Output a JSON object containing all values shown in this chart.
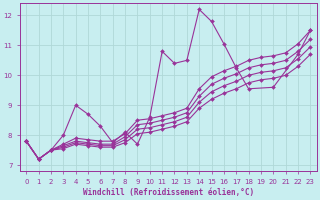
{
  "xlabel": "Windchill (Refroidissement éolien,°C)",
  "bg_color": "#c8eef0",
  "line_color": "#993399",
  "grid_color": "#aadddd",
  "xlim": [
    -0.5,
    23.5
  ],
  "ylim": [
    6.8,
    12.4
  ],
  "xticks": [
    0,
    1,
    2,
    3,
    4,
    5,
    6,
    7,
    8,
    9,
    10,
    11,
    12,
    13,
    14,
    15,
    16,
    17,
    18,
    19,
    20,
    21,
    22,
    23
  ],
  "yticks": [
    7,
    8,
    9,
    10,
    11,
    12
  ],
  "lines": [
    {
      "x": [
        0,
        1,
        2,
        3,
        4,
        5,
        6,
        7,
        8,
        9,
        10,
        11,
        12,
        13,
        14,
        15,
        16,
        17,
        18,
        20,
        22,
        23
      ],
      "y": [
        7.8,
        7.2,
        7.5,
        8.0,
        9.0,
        8.7,
        8.3,
        7.75,
        8.1,
        7.7,
        8.6,
        10.8,
        10.4,
        10.5,
        12.2,
        11.8,
        11.05,
        10.25,
        9.55,
        9.6,
        10.7,
        11.5
      ]
    },
    {
      "x": [
        0,
        1,
        2,
        3,
        4,
        5,
        6,
        7,
        8,
        9,
        10,
        11,
        12,
        13,
        14,
        15,
        16,
        17,
        18,
        19,
        20,
        21,
        22,
        23
      ],
      "y": [
        7.8,
        7.2,
        7.5,
        7.7,
        7.9,
        7.85,
        7.8,
        7.8,
        8.05,
        8.5,
        8.55,
        8.65,
        8.75,
        8.9,
        9.55,
        9.95,
        10.15,
        10.3,
        10.5,
        10.6,
        10.65,
        10.75,
        11.05,
        11.5
      ]
    },
    {
      "x": [
        0,
        1,
        2,
        3,
        4,
        5,
        6,
        7,
        8,
        9,
        10,
        11,
        12,
        13,
        14,
        15,
        16,
        17,
        18,
        19,
        20,
        21,
        22,
        23
      ],
      "y": [
        7.8,
        7.2,
        7.5,
        7.65,
        7.8,
        7.75,
        7.7,
        7.7,
        7.95,
        8.35,
        8.4,
        8.5,
        8.6,
        8.75,
        9.3,
        9.7,
        9.9,
        10.05,
        10.25,
        10.35,
        10.4,
        10.5,
        10.8,
        11.2
      ]
    },
    {
      "x": [
        0,
        1,
        2,
        3,
        4,
        5,
        6,
        7,
        8,
        9,
        10,
        11,
        12,
        13,
        14,
        15,
        16,
        17,
        18,
        19,
        20,
        21,
        22,
        23
      ],
      "y": [
        7.8,
        7.2,
        7.5,
        7.6,
        7.75,
        7.7,
        7.65,
        7.65,
        7.85,
        8.2,
        8.25,
        8.35,
        8.45,
        8.6,
        9.1,
        9.45,
        9.65,
        9.8,
        10.0,
        10.1,
        10.15,
        10.25,
        10.55,
        10.95
      ]
    },
    {
      "x": [
        0,
        1,
        2,
        3,
        4,
        5,
        6,
        7,
        8,
        9,
        10,
        11,
        12,
        13,
        14,
        15,
        16,
        17,
        18,
        19,
        20,
        21,
        22,
        23
      ],
      "y": [
        7.8,
        7.2,
        7.5,
        7.55,
        7.7,
        7.65,
        7.6,
        7.6,
        7.75,
        8.05,
        8.1,
        8.2,
        8.3,
        8.45,
        8.9,
        9.2,
        9.4,
        9.55,
        9.75,
        9.85,
        9.9,
        10.0,
        10.3,
        10.7
      ]
    }
  ],
  "marker": "D",
  "markersize": 2.0,
  "linewidth": 0.8,
  "tick_fontsize": 5,
  "label_fontsize": 5.5
}
